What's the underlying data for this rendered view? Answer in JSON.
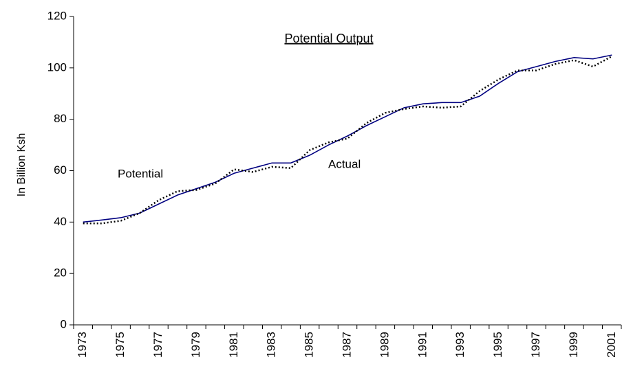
{
  "chart_data": {
    "type": "line",
    "title": "Potential Output",
    "y_label": "In Billion Ksh",
    "categories": [
      "1973",
      null,
      "1975",
      null,
      "1977",
      null,
      "1979",
      null,
      "1981",
      null,
      "1983",
      null,
      "1985",
      null,
      "1987",
      null,
      "1989",
      null,
      "1991",
      null,
      "1993",
      null,
      "1995",
      null,
      "1997",
      null,
      "1999",
      null,
      "2001"
    ],
    "series": [
      {
        "name": "Potential",
        "color": "#000080",
        "dash": "solid",
        "values": [
          40,
          40.8,
          41.7,
          43.5,
          47,
          50.5,
          53,
          55.5,
          59,
          61,
          63,
          63,
          66,
          70,
          73.5,
          77.5,
          81,
          84.5,
          86,
          86.5,
          86.5,
          89,
          94,
          98.5,
          100.5,
          102.5,
          104,
          103.5,
          105
        ]
      },
      {
        "name": "Actual",
        "color": "#000000",
        "dash": "dotted",
        "values": [
          39.5,
          39.5,
          40.5,
          43.5,
          48.5,
          52,
          52.5,
          55,
          60.5,
          59.5,
          61.5,
          61,
          68,
          71,
          72.5,
          78.5,
          82.5,
          84,
          85,
          84.5,
          85,
          91,
          95.5,
          99,
          99,
          101.5,
          103,
          100.5,
          104.5
        ]
      }
    ],
    "ylim": [
      0,
      120
    ],
    "yticks": [
      0,
      20,
      40,
      60,
      80,
      100,
      120
    ],
    "grid": false
  }
}
